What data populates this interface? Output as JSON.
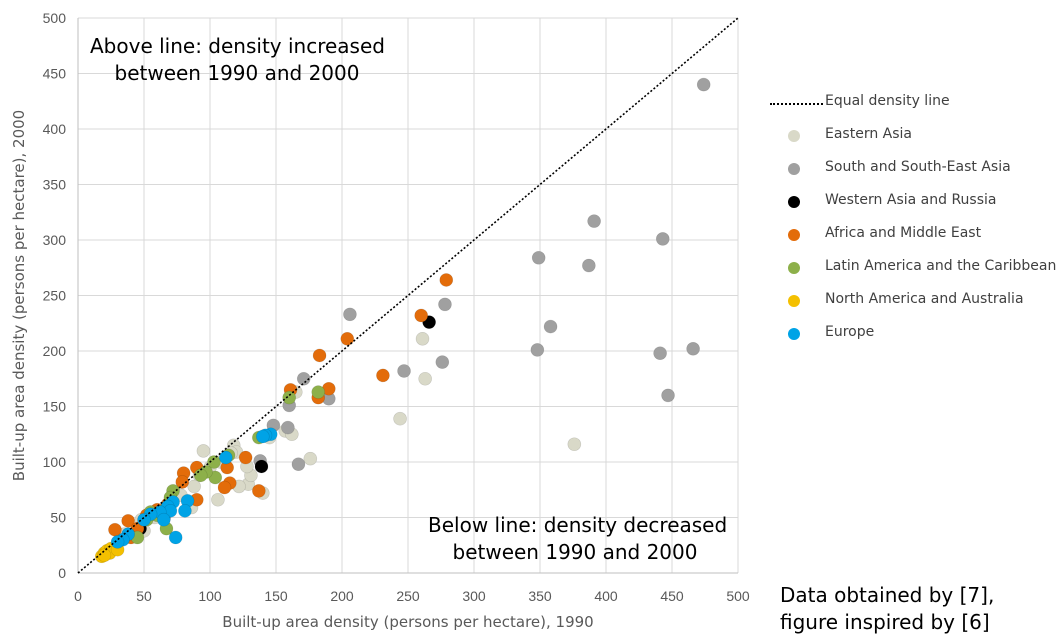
{
  "chart_data": {
    "type": "scatter",
    "xlabel": "Built-up area density (persons per hectare), 1990",
    "ylabel": "Built-up area density (persons per hectare), 2000",
    "xlim": [
      0,
      500
    ],
    "ylim": [
      0,
      500
    ],
    "x_ticks": [
      0,
      50,
      100,
      150,
      200,
      250,
      300,
      350,
      400,
      450,
      500
    ],
    "y_ticks": [
      0,
      50,
      100,
      150,
      200,
      250,
      300,
      350,
      400,
      450,
      500
    ],
    "grid": true,
    "legend_position": "right",
    "reference_line": {
      "name": "Equal density line",
      "x": [
        0,
        500
      ],
      "y": [
        0,
        500
      ],
      "style": "dotted",
      "color": "#000000"
    },
    "annotations": {
      "above": [
        "Above line: density increased",
        "between 1990 and 2000"
      ],
      "below": [
        "Below line: density decreased",
        "between 1990 and 2000"
      ]
    },
    "source_note": [
      "Data obtained by [7],",
      "figure inspired by [6]"
    ],
    "series": [
      {
        "name": "Eastern Asia",
        "color": "#D9D9C8",
        "points": [
          [
            95,
            110
          ],
          [
            118,
            115
          ],
          [
            120,
            109
          ],
          [
            92,
            88
          ],
          [
            106,
            66
          ],
          [
            129,
            80
          ],
          [
            131,
            88
          ],
          [
            122,
            78
          ],
          [
            140,
            72
          ],
          [
            157,
            128
          ],
          [
            162,
            125
          ],
          [
            165,
            163
          ],
          [
            176,
            103
          ],
          [
            244,
            139
          ],
          [
            261,
            211
          ],
          [
            263,
            175
          ],
          [
            376,
            116
          ],
          [
            100,
            95
          ],
          [
            78,
            70
          ],
          [
            62,
            55
          ],
          [
            58,
            50
          ],
          [
            48,
            48
          ],
          [
            35,
            35
          ],
          [
            88,
            78
          ],
          [
            108,
            100
          ],
          [
            50,
            38
          ],
          [
            86,
            59
          ],
          [
            116,
            108
          ],
          [
            128,
            96
          ],
          [
            145,
            122
          ]
        ]
      },
      {
        "name": "South and South-East Asia",
        "color": "#A0A0A0",
        "points": [
          [
            474,
            440
          ],
          [
            391,
            317
          ],
          [
            443,
            301
          ],
          [
            349,
            284
          ],
          [
            387,
            277
          ],
          [
            358,
            222
          ],
          [
            466,
            202
          ],
          [
            441,
            198
          ],
          [
            348,
            201
          ],
          [
            447,
            160
          ],
          [
            278,
            242
          ],
          [
            276,
            190
          ],
          [
            206,
            233
          ],
          [
            247,
            182
          ],
          [
            190,
            157
          ],
          [
            171,
            175
          ],
          [
            160,
            151
          ],
          [
            159,
            131
          ],
          [
            167,
            98
          ],
          [
            148,
            133
          ],
          [
            138,
            101
          ]
        ]
      },
      {
        "name": "Western Asia and Russia",
        "color": "#000000",
        "points": [
          [
            266,
            226
          ],
          [
            139,
            96
          ],
          [
            65,
            49
          ],
          [
            47,
            40
          ]
        ]
      },
      {
        "name": "Africa and Middle East",
        "color": "#E36C0A",
        "points": [
          [
            279,
            264
          ],
          [
            260,
            232
          ],
          [
            231,
            178
          ],
          [
            204,
            211
          ],
          [
            183,
            196
          ],
          [
            190,
            166
          ],
          [
            182,
            158
          ],
          [
            161,
            165
          ],
          [
            127,
            104
          ],
          [
            137,
            74
          ],
          [
            115,
            81
          ],
          [
            111,
            77
          ],
          [
            113,
            95
          ],
          [
            90,
            95
          ],
          [
            90,
            66
          ],
          [
            80,
            90
          ],
          [
            79,
            82
          ],
          [
            52,
            52
          ],
          [
            38,
            47
          ],
          [
            28,
            39
          ],
          [
            45,
            40
          ],
          [
            60,
            57
          ],
          [
            68,
            62
          ],
          [
            40,
            32
          ]
        ]
      },
      {
        "name": "Latin America and the Caribbean",
        "color": "#8DB04A",
        "points": [
          [
            182,
            163
          ],
          [
            160,
            158
          ],
          [
            137,
            122
          ],
          [
            114,
            106
          ],
          [
            103,
            100
          ],
          [
            104,
            86
          ],
          [
            97,
            91
          ],
          [
            93,
            88
          ],
          [
            72,
            74
          ],
          [
            70,
            68
          ],
          [
            66,
            57
          ],
          [
            60,
            52
          ],
          [
            55,
            55
          ],
          [
            52,
            48
          ],
          [
            45,
            32
          ],
          [
            67,
            40
          ]
        ]
      },
      {
        "name": "North America and Australia",
        "color": "#F4C000",
        "points": [
          [
            18,
            15
          ],
          [
            20,
            18
          ],
          [
            22,
            20
          ],
          [
            25,
            22
          ],
          [
            24,
            18
          ],
          [
            30,
            21
          ],
          [
            20,
            16
          ]
        ]
      },
      {
        "name": "Europe",
        "color": "#00A3E6",
        "points": [
          [
            146,
            125
          ],
          [
            142,
            124
          ],
          [
            140,
            123
          ],
          [
            112,
            104
          ],
          [
            83,
            65
          ],
          [
            81,
            56
          ],
          [
            72,
            64
          ],
          [
            74,
            32
          ],
          [
            68,
            60
          ],
          [
            70,
            56
          ],
          [
            62,
            55
          ],
          [
            55,
            53
          ],
          [
            50,
            48
          ],
          [
            38,
            35
          ],
          [
            34,
            30
          ],
          [
            30,
            28
          ],
          [
            65,
            48
          ]
        ]
      }
    ]
  }
}
